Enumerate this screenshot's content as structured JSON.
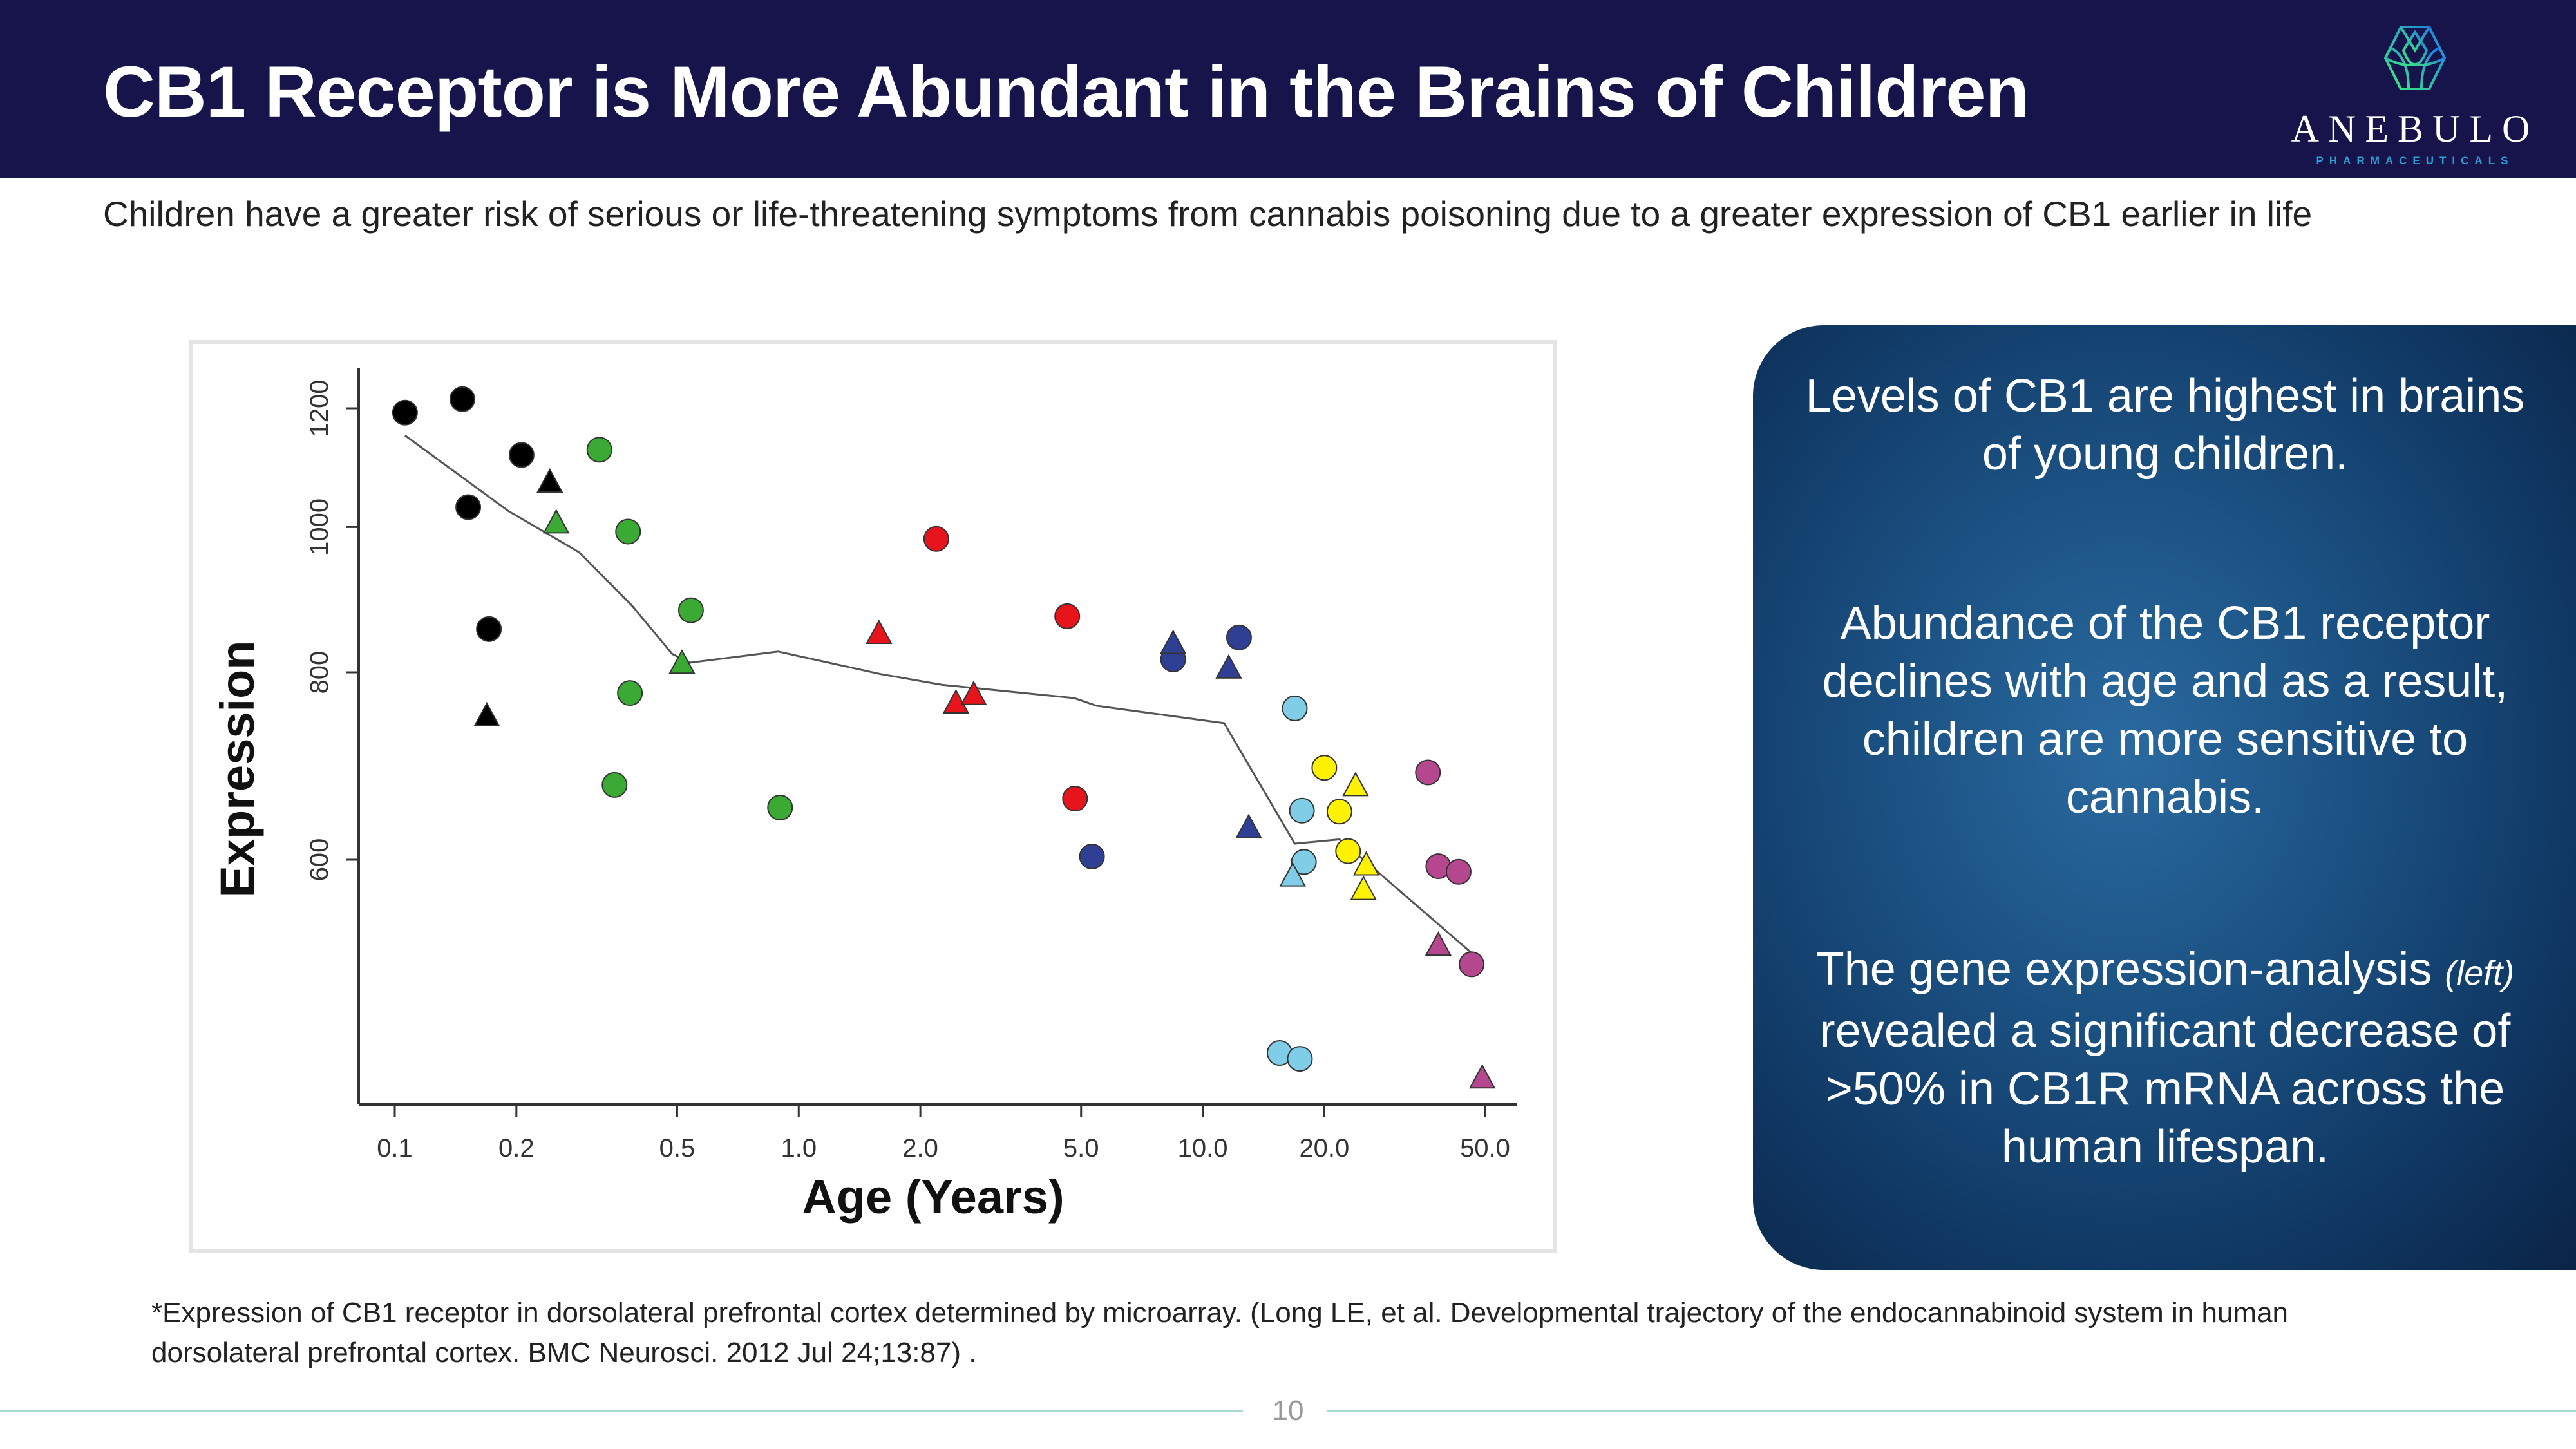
{
  "header": {
    "title": "CB1 Receptor is More Abundant in the Brains of Children",
    "logo": {
      "name": "ANEBULO",
      "sub": "PHARMACEUTICALS"
    }
  },
  "subtitle": "Children have a greater risk of serious or life-threatening symptoms from cannabis poisoning due to a greater expression of CB1 earlier in life",
  "panel": {
    "p1": "Levels of CB1 are highest in brains of young children.",
    "p2": "Abundance of the CB1 receptor declines with age and as a result, children are more sensitive to cannabis.",
    "p3_pre": "The gene expression-analysis ",
    "p3_italic": "(left)",
    "p3_post": " revealed a significant decrease of >50% in CB1R mRNA across the human lifespan."
  },
  "footnote": "*Expression of CB1 receptor in dorsolateral prefrontal cortex determined by microarray. (Long LE, et al.  Developmental trajectory of the endocannabinoid system in human dorsolateral prefrontal cortex.  BMC Neurosci.  2012 Jul 24;13:87) .",
  "page_number": "10",
  "chart_data": {
    "type": "scatter",
    "xlabel": "Age (Years)",
    "ylabel": "Expression",
    "x_scale": "log",
    "y_scale": "log",
    "xlim": [
      0.09,
      55
    ],
    "ylim": [
      420,
      1260
    ],
    "x_ticks": [
      0.1,
      0.2,
      0.5,
      1.0,
      2.0,
      5.0,
      10.0,
      20.0,
      50.0
    ],
    "x_tick_labels": [
      "0.1",
      "0.2",
      "0.5",
      "1.0",
      "2.0",
      "5.0",
      "10.0",
      "20.0",
      "50.0"
    ],
    "y_ticks": [
      600,
      800,
      1000,
      1200
    ],
    "y_tick_labels": [
      "600",
      "800",
      "1000",
      "1200"
    ],
    "grid": false,
    "groups": [
      {
        "color": "#000000",
        "circles": [
          [
            0.106,
            1192
          ],
          [
            0.147,
            1217
          ],
          [
            0.206,
            1117
          ],
          [
            0.152,
            1031
          ],
          [
            0.171,
            855
          ]
        ],
        "triangles": [
          [
            0.242,
            1071
          ],
          [
            0.169,
            748
          ]
        ]
      },
      {
        "color": "#3aaa35",
        "circles": [
          [
            0.321,
            1126
          ],
          [
            0.378,
            993
          ],
          [
            0.541,
            880
          ],
          [
            0.382,
            775
          ],
          [
            0.35,
            673
          ],
          [
            0.899,
            650
          ]
        ],
        "triangles": [
          [
            0.251,
            1006
          ],
          [
            0.514,
            811
          ]
        ]
      },
      {
        "color": "#e8141b",
        "circles": [
          [
            2.19,
            982
          ],
          [
            4.62,
            872
          ],
          [
            4.83,
            659
          ]
        ],
        "triangles": [
          [
            1.58,
            849
          ],
          [
            2.45,
            763
          ],
          [
            2.71,
            773
          ]
        ]
      },
      {
        "color": "#2f3f94",
        "circles": [
          [
            8.45,
            816
          ],
          [
            12.3,
            844
          ],
          [
            5.32,
            603
          ]
        ],
        "triangles": [
          [
            8.45,
            836
          ],
          [
            11.6,
            805
          ],
          [
            13.0,
            630
          ]
        ]
      },
      {
        "color": "#7fcde6",
        "circles": [
          [
            16.9,
            757
          ],
          [
            17.6,
            647
          ],
          [
            17.8,
            598
          ],
          [
            15.5,
            446
          ],
          [
            17.4,
            442
          ]
        ],
        "triangles": [
          [
            16.7,
            585
          ]
        ]
      },
      {
        "color": "#fff200",
        "circles": [
          [
            20.0,
            691
          ],
          [
            21.8,
            646
          ],
          [
            22.9,
            608
          ]
        ],
        "triangles": [
          [
            23.9,
            672
          ],
          [
            25.4,
            595
          ],
          [
            25.0,
            573
          ]
        ]
      },
      {
        "color": "#b5478f",
        "circles": [
          [
            36.1,
            686
          ],
          [
            38.3,
            594
          ],
          [
            43.0,
            589
          ],
          [
            46.3,
            511
          ]
        ],
        "triangles": [
          [
            38.3,
            526
          ],
          [
            49.2,
            429
          ]
        ]
      }
    ],
    "trend_line": [
      [
        0.106,
        1151
      ],
      [
        0.191,
        1025
      ],
      [
        0.286,
        962
      ],
      [
        0.387,
        886
      ],
      [
        0.486,
        823
      ],
      [
        0.538,
        812
      ],
      [
        0.889,
        826
      ],
      [
        1.59,
        798
      ],
      [
        2.26,
        785
      ],
      [
        4.81,
        769
      ],
      [
        5.46,
        760
      ],
      [
        11.3,
        740
      ],
      [
        16.9,
        615
      ],
      [
        21.8,
        619
      ],
      [
        25.4,
        598
      ],
      [
        46.3,
        520
      ]
    ]
  }
}
